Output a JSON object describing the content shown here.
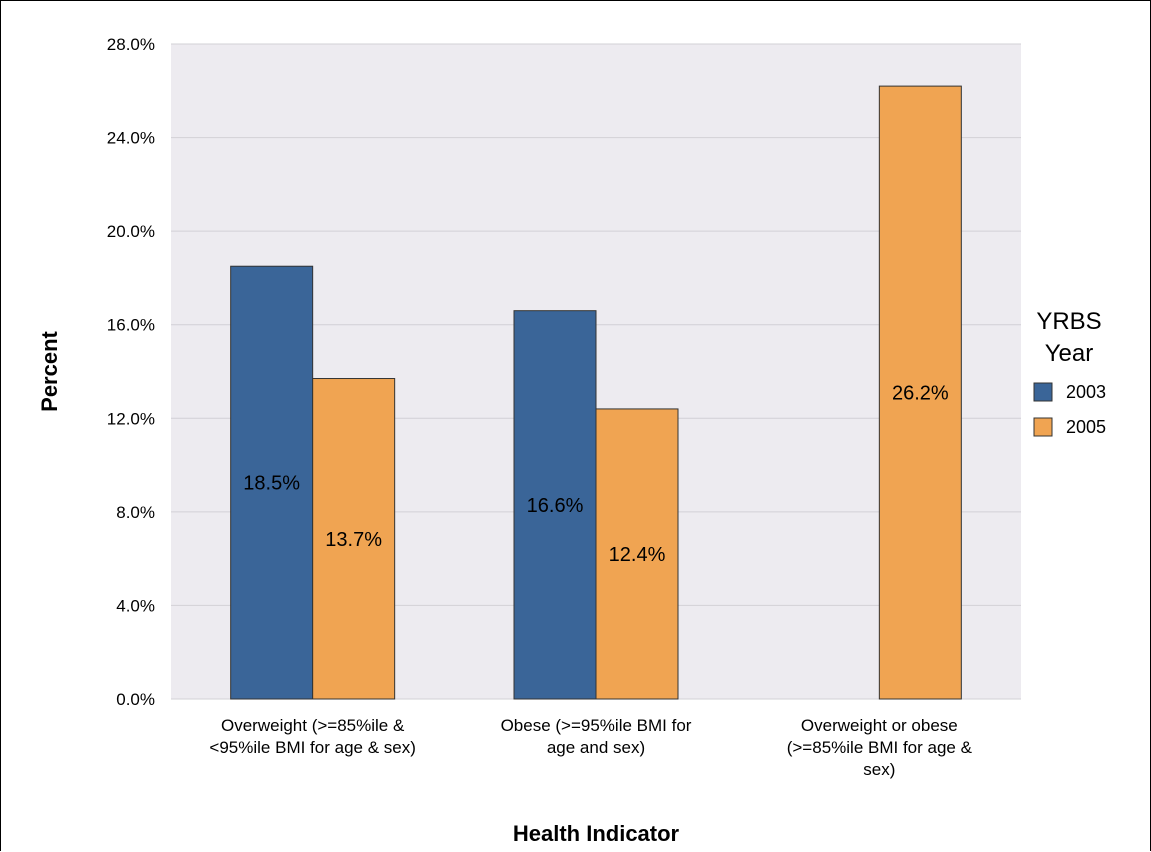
{
  "chart_data": {
    "type": "bar",
    "title": "",
    "xlabel": "Health Indicator",
    "ylabel": "Percent",
    "ylim": [
      0,
      28
    ],
    "yticks": [
      "0.0%",
      "4.0%",
      "8.0%",
      "12.0%",
      "16.0%",
      "20.0%",
      "24.0%",
      "28.0%"
    ],
    "categories": [
      [
        "Overweight (>=85%ile &",
        "<95%ile BMI for age & sex)"
      ],
      [
        "Obese (>=95%ile BMI for",
        "age and sex)"
      ],
      [
        "Overweight or obese",
        "(>=85%ile BMI for age &",
        "sex)"
      ]
    ],
    "legend": {
      "title": [
        "YRBS",
        "Year"
      ],
      "placement": "right"
    },
    "grid": true,
    "series": [
      {
        "name": "2003",
        "color": "#3a6598",
        "values": [
          18.5,
          16.6,
          null
        ],
        "labels": [
          "18.5%",
          "16.6%",
          ""
        ]
      },
      {
        "name": "2005",
        "color": "#f0a452",
        "values": [
          13.7,
          12.4,
          26.2
        ],
        "labels": [
          "13.7%",
          "12.4%",
          "26.2%"
        ]
      }
    ],
    "colors": {
      "plot_bg": "#edebf0",
      "grid": "#d2d0d6",
      "bar_stroke": "#333333"
    }
  }
}
